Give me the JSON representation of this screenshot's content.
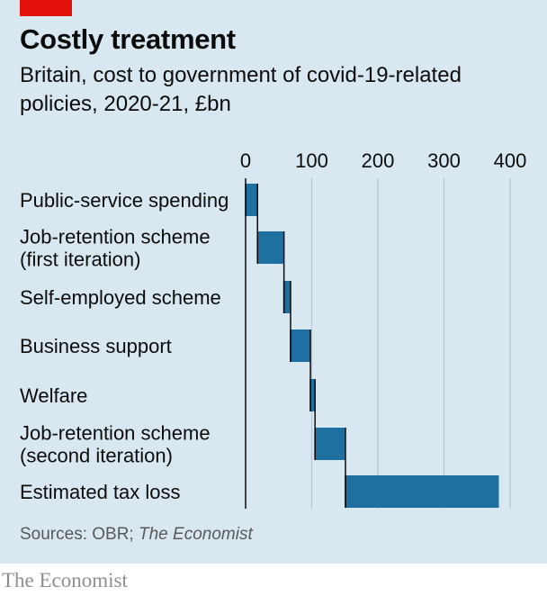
{
  "header": {
    "title": "Costly treatment",
    "subtitle": "Britain, cost to government of covid-19-related policies, 2020-21, £bn"
  },
  "source": {
    "prefix": "Sources: OBR; ",
    "publication": "The Economist"
  },
  "footer": {
    "brand": "The Economist"
  },
  "colors": {
    "bar": "#1f6fa0",
    "background": "#d9e7f0",
    "brand_red": "#e3120b"
  },
  "chart_data": {
    "type": "bar",
    "subtype": "waterfall",
    "orientation": "horizontal",
    "title": "Costly treatment",
    "subtitle": "Britain, cost to government of covid-19-related policies, 2020-21, £bn",
    "categories": [
      "Public-service spending",
      "Job-retention scheme (first iteration)",
      "Self-employed scheme",
      "Business support",
      "Welfare",
      "Job-retention scheme (second iteration)",
      "Estimated tax loss"
    ],
    "category_lines": [
      [
        "Public-service spending"
      ],
      [
        "Job-retention scheme",
        "(first iteration)"
      ],
      [
        "Self-employed scheme"
      ],
      [
        "Business support"
      ],
      [
        "Welfare"
      ],
      [
        "Job-retention scheme",
        "(second iteration)"
      ],
      [
        "Estimated tax loss"
      ]
    ],
    "values": [
      18,
      40,
      10,
      30,
      7,
      46,
      232
    ],
    "cumulative_end": [
      18,
      58,
      68,
      98,
      105,
      151,
      383
    ],
    "x_ticks": [
      0,
      100,
      200,
      300,
      400
    ],
    "xlim": [
      0,
      400
    ],
    "grid": true,
    "legend": "none"
  }
}
